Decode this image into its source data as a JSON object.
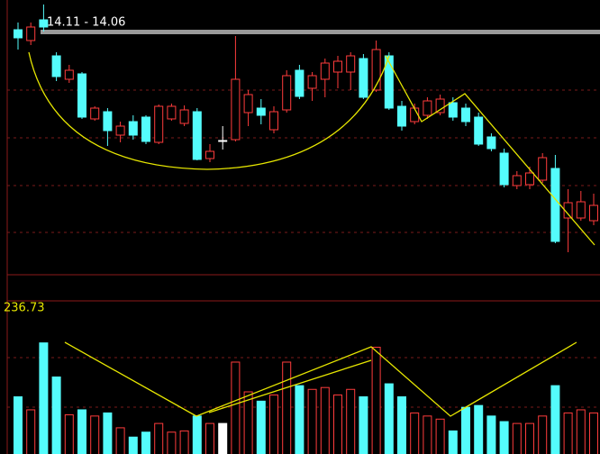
{
  "chart_data": [
    {
      "type": "candlestick",
      "annotation": "14.11 - 14.06",
      "up_color": "#ff3c3c",
      "down_color": "#54fcfc",
      "flat_color": "#ffffff",
      "ylim": [
        11.7,
        15.0
      ],
      "open": [
        14.67,
        14.55,
        14.78,
        14.38,
        14.12,
        14.18,
        13.68,
        13.76,
        13.5,
        13.65,
        13.7,
        13.42,
        13.68,
        13.63,
        13.76,
        13.24,
        13.44,
        13.45,
        13.75,
        13.8,
        13.56,
        13.78,
        14.22,
        14.02,
        14.12,
        14.2,
        14.2,
        14.35,
        14.0,
        14.38,
        13.82,
        13.65,
        13.72,
        13.75,
        13.86,
        13.8,
        13.7,
        13.48,
        13.3,
        12.94,
        12.95,
        13.0,
        13.13,
        12.58,
        12.58,
        12.55
      ],
      "high": [
        14.75,
        14.75,
        14.95,
        14.42,
        14.28,
        14.2,
        13.82,
        13.8,
        13.65,
        13.72,
        13.72,
        13.84,
        13.85,
        13.83,
        13.8,
        13.4,
        13.6,
        14.6,
        14.0,
        13.9,
        13.82,
        14.22,
        14.28,
        14.2,
        14.35,
        14.38,
        14.42,
        14.4,
        14.55,
        14.42,
        13.88,
        13.85,
        13.92,
        13.95,
        13.92,
        13.85,
        13.75,
        13.52,
        13.35,
        13.1,
        13.15,
        13.3,
        13.28,
        12.9,
        12.88,
        12.85
      ],
      "low": [
        14.45,
        14.5,
        14.65,
        14.1,
        14.08,
        13.68,
        13.66,
        13.38,
        13.42,
        13.45,
        13.4,
        13.4,
        13.66,
        13.6,
        13.22,
        13.2,
        13.34,
        13.43,
        13.6,
        13.62,
        13.52,
        13.75,
        13.9,
        13.88,
        13.92,
        14.02,
        14.0,
        13.9,
        13.98,
        13.78,
        13.55,
        13.62,
        13.68,
        13.72,
        13.66,
        13.6,
        13.38,
        13.32,
        12.92,
        12.9,
        12.9,
        12.97,
        12.3,
        12.2,
        12.55,
        12.5
      ],
      "close": [
        14.58,
        14.7,
        14.7,
        14.15,
        14.22,
        13.7,
        13.8,
        13.55,
        13.6,
        13.5,
        13.43,
        13.82,
        13.82,
        13.78,
        13.23,
        13.32,
        13.44,
        14.12,
        13.95,
        13.72,
        13.76,
        14.16,
        13.93,
        14.16,
        14.3,
        14.32,
        14.38,
        13.92,
        14.45,
        13.8,
        13.6,
        13.8,
        13.88,
        13.9,
        13.7,
        13.65,
        13.4,
        13.35,
        12.95,
        13.05,
        13.08,
        13.25,
        12.32,
        12.75,
        12.76,
        12.72
      ]
    },
    {
      "type": "volume",
      "annotation": "236.73",
      "ylim": [
        0,
        250
      ],
      "values": [
        101,
        80,
        188,
        133,
        72,
        80,
        70,
        75,
        51,
        36,
        44,
        58,
        44,
        46,
        70,
        58,
        58,
        157,
        109,
        94,
        104,
        157,
        119,
        113,
        116,
        104,
        113,
        101,
        181,
        122,
        101,
        75,
        70,
        65,
        46,
        84,
        87,
        70,
        61,
        58,
        58,
        70,
        119,
        75,
        80,
        75
      ]
    }
  ]
}
